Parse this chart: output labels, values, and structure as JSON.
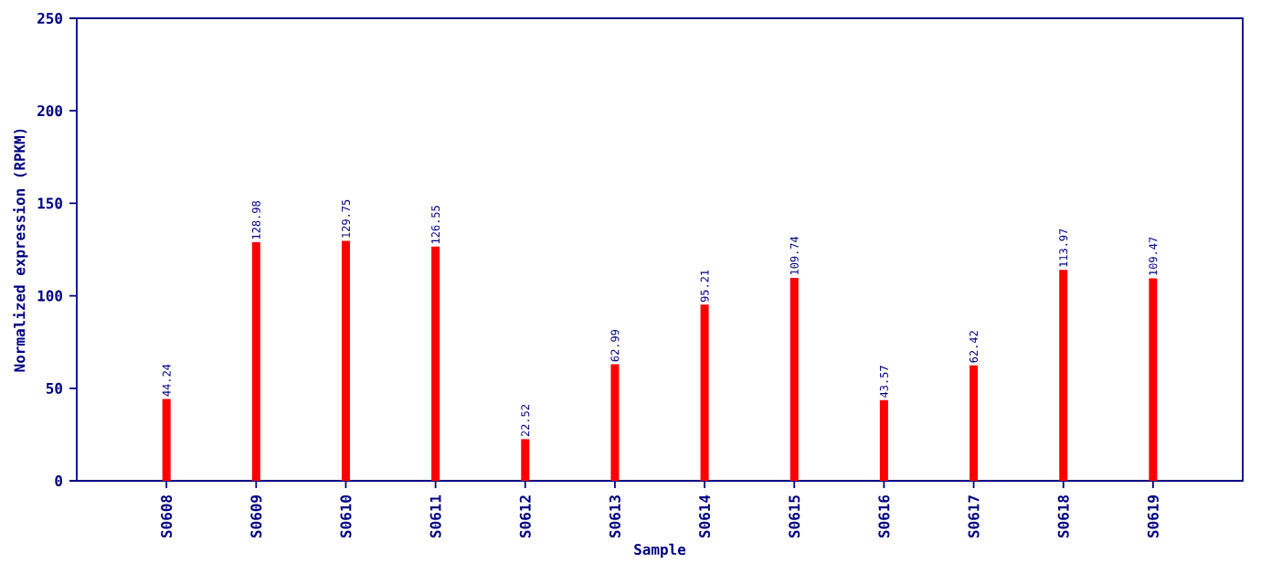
{
  "chart_data": {
    "type": "bar",
    "xlabel": "Sample",
    "ylabel": "Normalized expression (RPKM)",
    "categories": [
      "S0608",
      "S0609",
      "S0610",
      "S0611",
      "S0612",
      "S0613",
      "S0614",
      "S0615",
      "S0616",
      "S0617",
      "S0618",
      "S0619"
    ],
    "values": [
      44.24,
      128.98,
      129.75,
      126.55,
      22.52,
      62.99,
      95.21,
      109.74,
      43.57,
      62.42,
      113.97,
      109.47
    ],
    "color": "#ff0000",
    "ylim": [
      0,
      250
    ],
    "yticks": [
      0,
      50,
      100,
      150,
      200,
      250
    ],
    "data_labels": true
  }
}
